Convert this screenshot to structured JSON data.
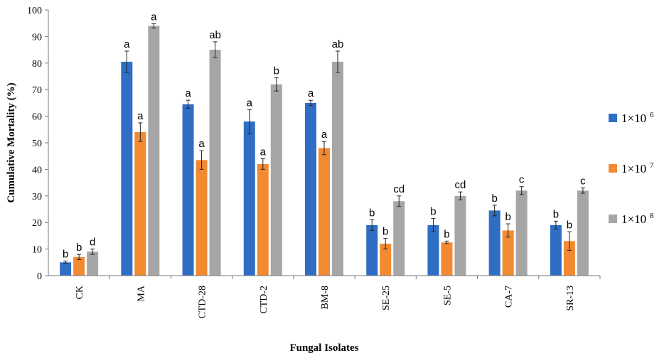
{
  "chart_data": {
    "type": "bar",
    "xlabel": "Fungal Isolates",
    "ylabel": "Cumulative Mortality (%)",
    "ylim": [
      0,
      100
    ],
    "yticks": [
      0,
      10,
      20,
      30,
      40,
      50,
      60,
      70,
      80,
      90,
      100
    ],
    "grid": false,
    "legend_position": "right",
    "categories": [
      "CK",
      "MA",
      "CTD-28",
      "CTD-2",
      "BM-8",
      "SE-25",
      "SE-5",
      "CA-7",
      "SR-13"
    ],
    "series": [
      {
        "name": "1×10⁶",
        "legend_base": "1×10",
        "legend_exp": "6",
        "color": "#2f6ec4",
        "values": [
          5,
          80.5,
          64.5,
          58,
          65,
          19,
          19,
          24.5,
          19
        ],
        "errors": [
          0.5,
          4,
          1.5,
          4.5,
          1,
          2,
          2.5,
          2,
          1.5
        ],
        "labels": [
          "b",
          "a",
          "a",
          "a",
          "a",
          "b",
          "b",
          "b",
          "b"
        ]
      },
      {
        "name": "1×10⁷",
        "legend_base": "1×10",
        "legend_exp": "7",
        "color": "#f28a32",
        "values": [
          7,
          54,
          43.5,
          42,
          48,
          12,
          12.5,
          17,
          13
        ],
        "errors": [
          1,
          3.5,
          3.5,
          2,
          2.5,
          2,
          0.5,
          2.5,
          3.5
        ],
        "labels": [
          "b",
          "a",
          "a",
          "a",
          "a",
          "b",
          "b",
          "b",
          "b"
        ]
      },
      {
        "name": "1×10⁸",
        "legend_base": "1×10",
        "legend_exp": "8",
        "color": "#a6a6a6",
        "values": [
          9,
          94,
          85,
          72,
          80.5,
          28,
          30,
          32,
          32
        ],
        "errors": [
          1,
          0.8,
          3,
          2.5,
          4,
          2,
          1.5,
          1.5,
          1
        ],
        "labels": [
          "d",
          "a",
          "ab",
          "b",
          "ab",
          "cd",
          "cd",
          "c",
          "c"
        ]
      }
    ]
  }
}
